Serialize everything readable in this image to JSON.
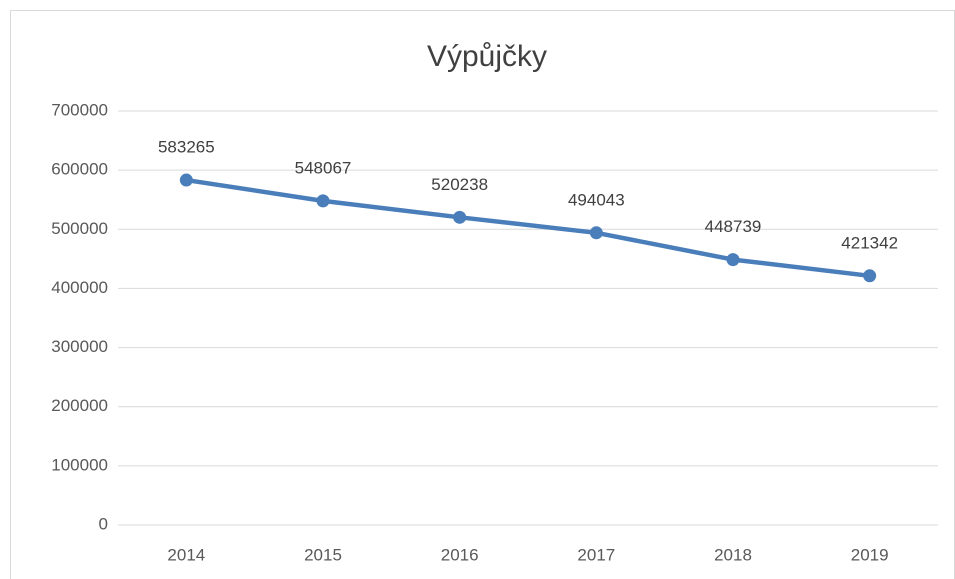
{
  "chart_data": {
    "type": "line",
    "title": "Výpůjčky",
    "categories": [
      "2014",
      "2015",
      "2016",
      "2017",
      "2018",
      "2019"
    ],
    "series": [
      {
        "name": "Výpůjčky",
        "color": "#4a7ebb",
        "values": [
          583265,
          548067,
          520238,
          494043,
          448739,
          421342
        ]
      }
    ],
    "ylim": [
      0,
      700000
    ],
    "yticks": [
      0,
      100000,
      200000,
      300000,
      400000,
      500000,
      600000,
      700000
    ],
    "grid": true,
    "data_labels": true
  }
}
